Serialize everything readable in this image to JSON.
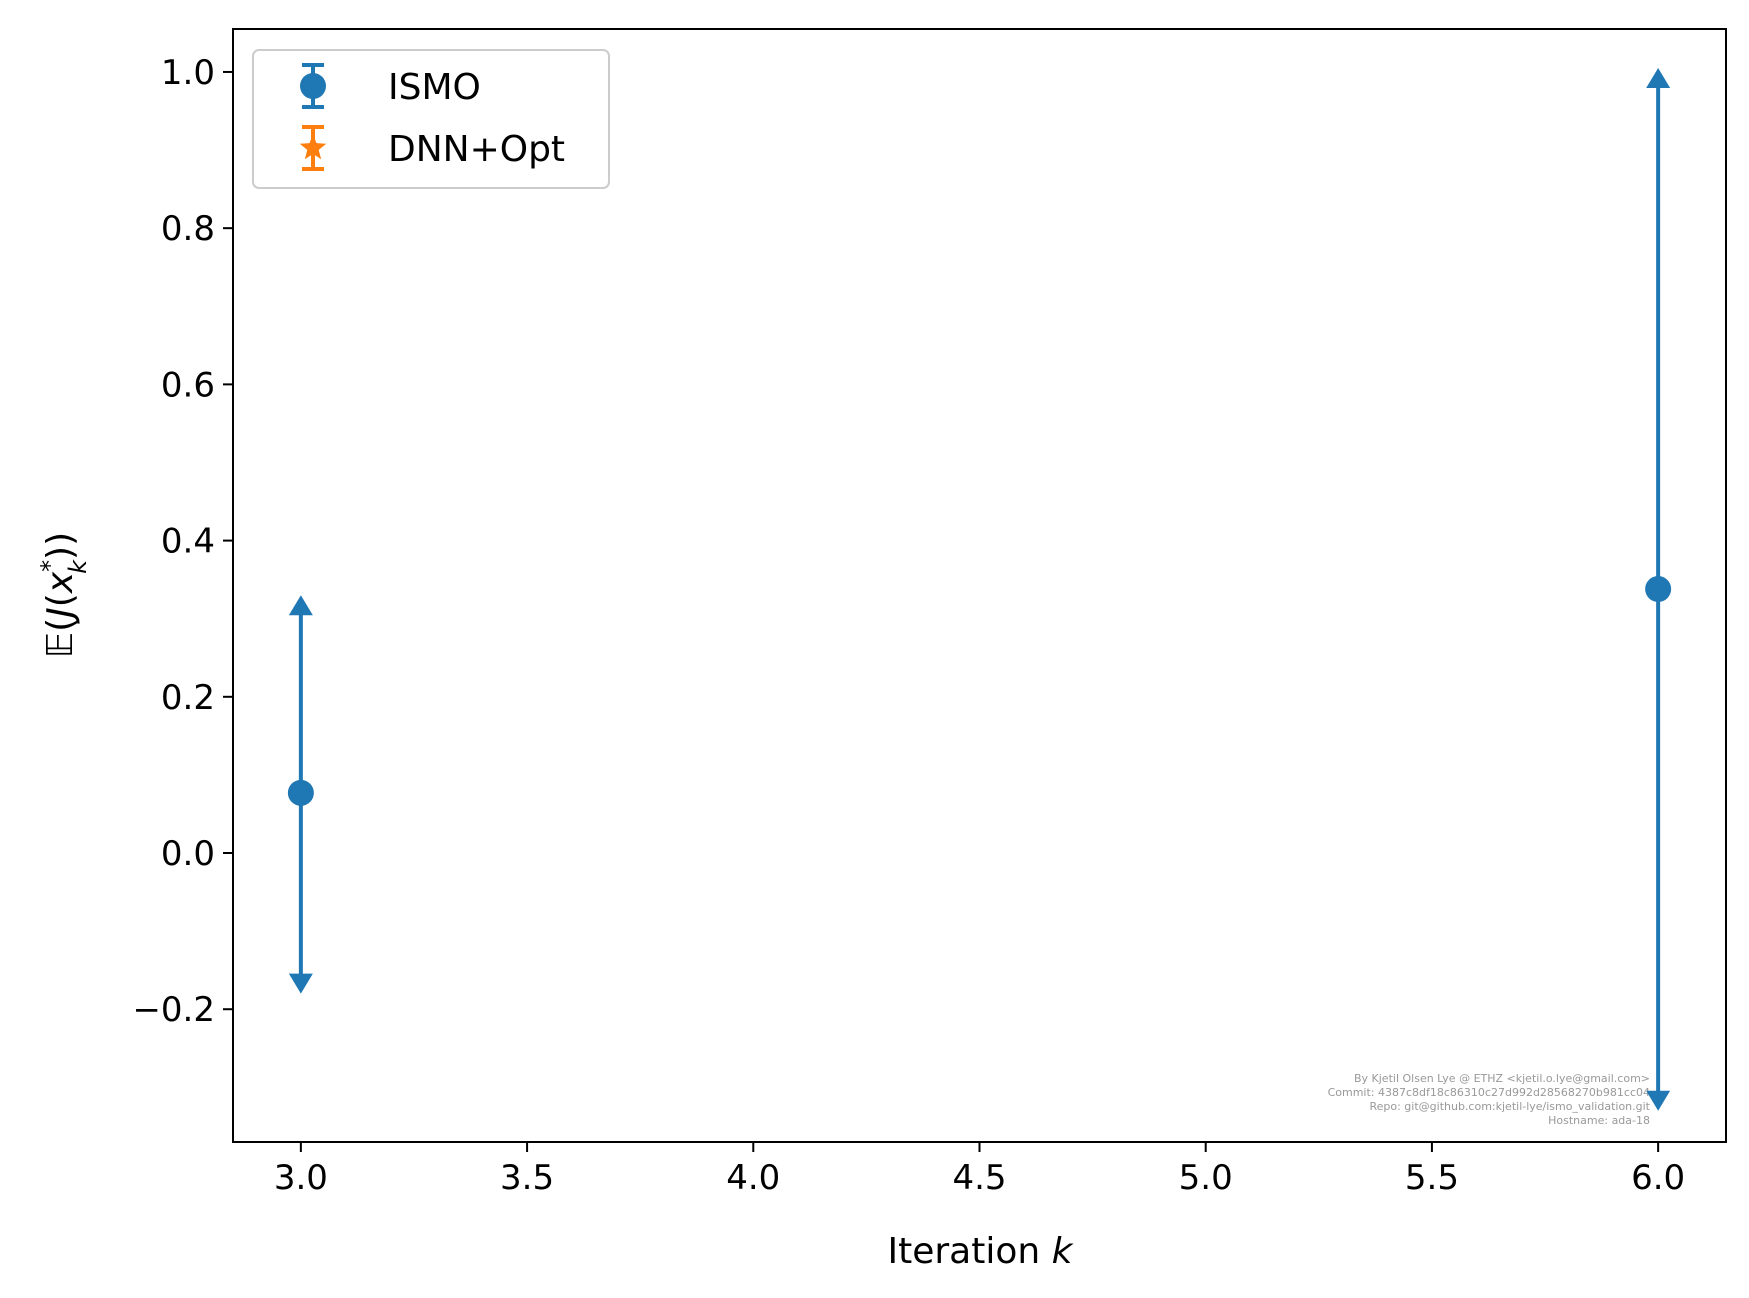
{
  "chart_data": {
    "type": "scatter",
    "title": "",
    "xlabel": "Iteration",
    "xlabel_var": "k",
    "ylabel_parts": [
      "𝔼(",
      "J",
      "(",
      "x",
      "*",
      "k",
      "))"
    ],
    "xlim": [
      2.85,
      6.15
    ],
    "ylim": [
      -0.37,
      1.055
    ],
    "xticks": [
      3.0,
      3.5,
      4.0,
      4.5,
      5.0,
      5.5,
      6.0
    ],
    "xtick_labels": [
      "3.0",
      "3.5",
      "4.0",
      "4.5",
      "5.0",
      "5.5",
      "6.0"
    ],
    "yticks": [
      -0.2,
      0.0,
      0.2,
      0.4,
      0.6,
      0.8,
      1.0
    ],
    "ytick_labels": [
      "−0.2",
      "0.0",
      "0.2",
      "0.4",
      "0.6",
      "0.8",
      "1.0"
    ],
    "grid": false,
    "legend_position": "top-left",
    "series": [
      {
        "name": "ISMO",
        "color": "#1f77b4",
        "marker": "circle",
        "points": [
          {
            "x": 3.0,
            "y": 0.077,
            "upper": 0.33,
            "lower": -0.18
          },
          {
            "x": 6.0,
            "y": 0.338,
            "upper": 1.005,
            "lower": -0.33
          }
        ]
      },
      {
        "name": "DNN+Opt",
        "color": "#ff7f0e",
        "marker": "star",
        "points": []
      }
    ],
    "watermark_lines": [
      "By Kjetil Olsen Lye @ ETHZ <kjetil.o.lye@gmail.com>",
      "Commit: 4387c8df18c86310c27d992d28568270b981cc04",
      "Repo: git@github.com:kjetil-lye/ismo_validation.git",
      "Hostname: ada-18"
    ]
  }
}
